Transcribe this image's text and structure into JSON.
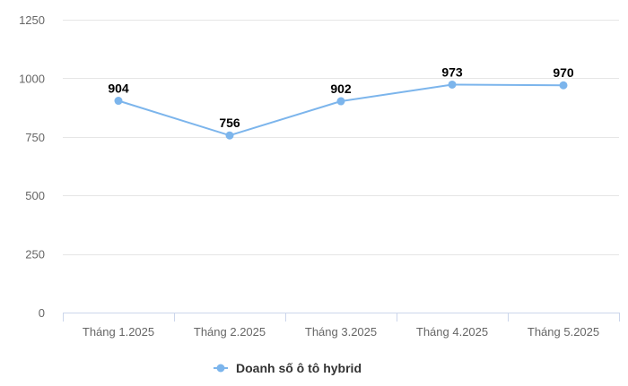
{
  "chart_data": {
    "type": "line",
    "categories": [
      "Tháng 1.2025",
      "Tháng 2.2025",
      "Tháng 3.2025",
      "Tháng 4.2025",
      "Tháng 5.2025"
    ],
    "series": [
      {
        "name": "Doanh số ô tô hybrid",
        "values": [
          904,
          756,
          902,
          973,
          970
        ],
        "color": "#7cb5ec"
      }
    ],
    "ylim": [
      0,
      1250
    ],
    "yticks": [
      0,
      250,
      500,
      750,
      1000,
      1250
    ],
    "grid": true,
    "legend_position": "bottom-center",
    "data_labels": true
  }
}
